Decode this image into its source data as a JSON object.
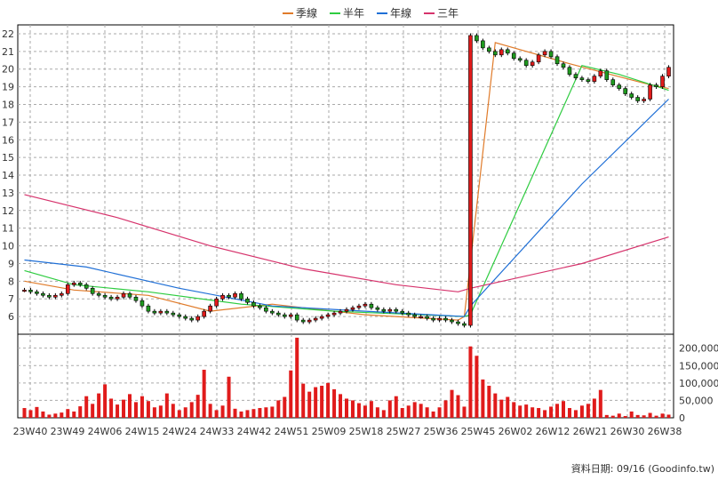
{
  "legend": [
    {
      "label": "季線",
      "color": "#e07b2a"
    },
    {
      "label": "半年",
      "color": "#2ecc40"
    },
    {
      "label": "年線",
      "color": "#1f6fd6"
    },
    {
      "label": "三年",
      "color": "#d6336c"
    }
  ],
  "footer_text": "資料日期: 09/16  (Goodinfo.tw)",
  "chart_data": [
    {
      "type": "candlestick",
      "title": "",
      "ylim": [
        5,
        22.5
      ],
      "y_ticks": [
        6,
        7,
        8,
        9,
        10,
        11,
        12,
        13,
        14,
        15,
        16,
        17,
        18,
        19,
        20,
        21,
        22
      ],
      "x_ticks": [
        "23W40",
        "23W49",
        "24W06",
        "24W15",
        "24W24",
        "24W33",
        "24W42",
        "24W51",
        "25W09",
        "25W18",
        "25W27",
        "25W36",
        "25W45",
        "26W02",
        "26W12",
        "26W21",
        "26W30",
        "26W38"
      ],
      "grid": true,
      "weekly_close_approx": [
        7.5,
        7.4,
        7.3,
        7.2,
        7.1,
        7.2,
        7.3,
        7.8,
        7.9,
        7.8,
        7.6,
        7.3,
        7.2,
        7.1,
        7.0,
        7.1,
        7.3,
        7.1,
        6.9,
        6.6,
        6.3,
        6.2,
        6.3,
        6.2,
        6.1,
        6.0,
        5.9,
        5.8,
        6.0,
        6.3,
        6.6,
        7.0,
        7.2,
        7.1,
        7.3,
        7.0,
        6.8,
        6.6,
        6.5,
        6.3,
        6.2,
        6.1,
        6.0,
        6.1,
        5.8,
        5.7,
        5.8,
        5.9,
        6.0,
        6.1,
        6.2,
        6.3,
        6.4,
        6.5,
        6.6,
        6.7,
        6.5,
        6.4,
        6.3,
        6.4,
        6.3,
        6.2,
        6.1,
        6.0,
        6.0,
        5.9,
        5.8,
        5.9,
        5.8,
        5.7,
        5.6,
        5.5,
        21.9,
        21.6,
        21.2,
        21.0,
        20.8,
        21.1,
        20.9,
        20.6,
        20.5,
        20.2,
        20.4,
        20.8,
        21.0,
        20.7,
        20.3,
        20.1,
        19.7,
        19.5,
        19.4,
        19.3,
        19.6,
        19.9,
        19.4,
        19.1,
        18.9,
        18.6,
        18.4,
        18.2,
        18.3,
        19.1,
        19.0,
        19.6,
        20.1
      ],
      "ma_series": [
        {
          "name": "季線",
          "points": [
            [
              0,
              8.0
            ],
            [
              8,
              7.5
            ],
            [
              20,
              7.2
            ],
            [
              30,
              6.3
            ],
            [
              40,
              6.7
            ],
            [
              55,
              6.1
            ],
            [
              70,
              5.8
            ],
            [
              71,
              6.0
            ],
            [
              76,
              21.5
            ],
            [
              88,
              20.3
            ],
            [
              100,
              19.2
            ],
            [
              104,
              18.9
            ]
          ]
        },
        {
          "name": "半年",
          "points": [
            [
              0,
              8.6
            ],
            [
              8,
              7.8
            ],
            [
              20,
              7.4
            ],
            [
              35,
              6.7
            ],
            [
              50,
              6.3
            ],
            [
              71,
              6.0
            ],
            [
              72,
              6.1
            ],
            [
              90,
              20.2
            ],
            [
              96,
              19.7
            ],
            [
              104,
              18.8
            ]
          ]
        },
        {
          "name": "年線",
          "points": [
            [
              0,
              9.2
            ],
            [
              10,
              8.8
            ],
            [
              25,
              7.6
            ],
            [
              40,
              6.6
            ],
            [
              55,
              6.3
            ],
            [
              71,
              6.0
            ],
            [
              72,
              6.6
            ],
            [
              90,
              13.5
            ],
            [
              104,
              18.3
            ]
          ]
        },
        {
          "name": "三年",
          "points": [
            [
              0,
              12.9
            ],
            [
              15,
              11.6
            ],
            [
              30,
              10.0
            ],
            [
              45,
              8.7
            ],
            [
              60,
              7.8
            ],
            [
              70,
              7.4
            ],
            [
              72,
              7.6
            ],
            [
              90,
              9.0
            ],
            [
              104,
              10.5
            ]
          ]
        }
      ]
    },
    {
      "type": "bar",
      "title": "",
      "ylim": [
        0,
        240000
      ],
      "y_ticks": [
        "0",
        "50,000",
        "100,000",
        "150,000",
        "200,000"
      ],
      "values": [
        28000,
        22000,
        31000,
        18000,
        9000,
        12000,
        15000,
        25000,
        18000,
        33000,
        62000,
        40000,
        70000,
        96000,
        55000,
        38000,
        52000,
        68000,
        45000,
        62000,
        48000,
        30000,
        35000,
        70000,
        40000,
        22000,
        30000,
        45000,
        66000,
        138000,
        40000,
        22000,
        35000,
        118000,
        26000,
        18000,
        22000,
        25000,
        28000,
        30000,
        32000,
        50000,
        60000,
        136000,
        230000,
        98000,
        75000,
        88000,
        92000,
        100000,
        82000,
        68000,
        55000,
        50000,
        42000,
        35000,
        48000,
        30000,
        22000,
        50000,
        62000,
        28000,
        35000,
        45000,
        40000,
        30000,
        18000,
        30000,
        50000,
        80000,
        65000,
        32000,
        205000,
        178000,
        110000,
        92000,
        70000,
        52000,
        60000,
        45000,
        35000,
        38000,
        30000,
        28000,
        22000,
        32000,
        40000,
        48000,
        28000,
        22000,
        35000,
        40000,
        55000,
        80000,
        8000,
        6000,
        12000,
        5000,
        18000,
        8000,
        7000,
        14000,
        6000,
        12000,
        9000
      ]
    }
  ]
}
